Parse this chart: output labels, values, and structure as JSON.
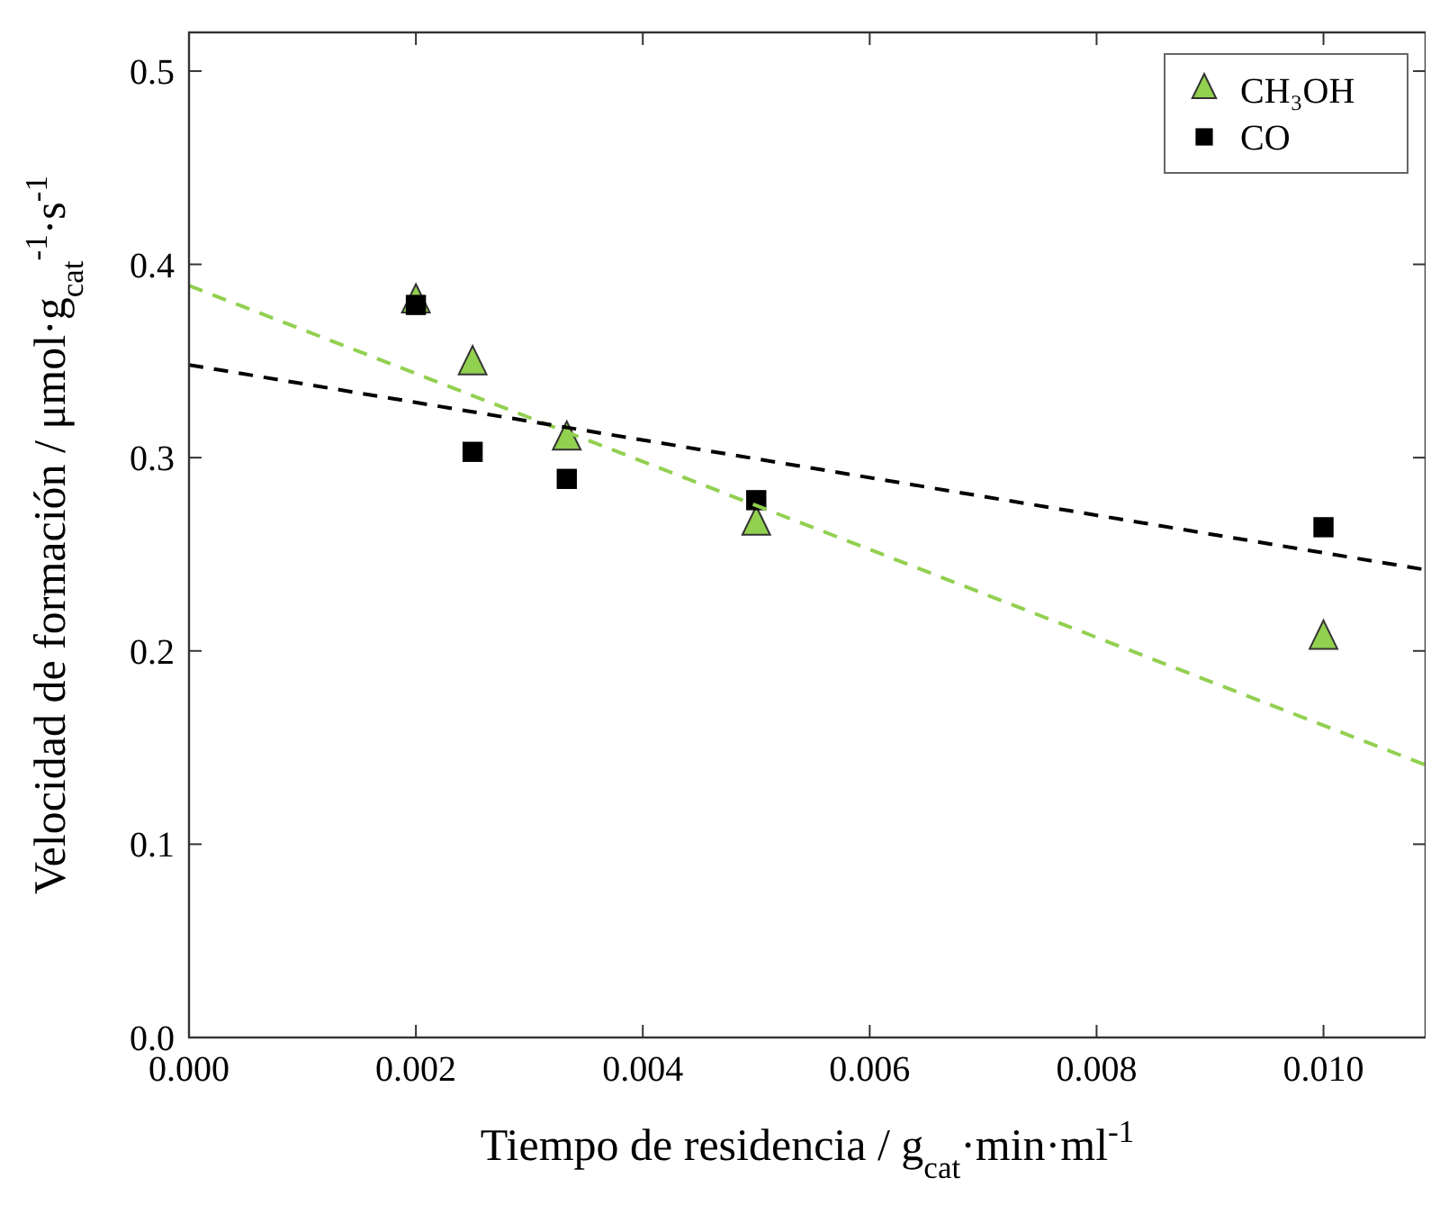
{
  "chart_data": {
    "type": "scatter",
    "xlabel": "Tiempo de residencia / g$_{cat}$·min·ml$^{-1}$",
    "ylabel": "Velocidad de formación / μmol·g$_{cat}$$^{-1}$·s$^{-1}$",
    "xlim": [
      0,
      0.0109
    ],
    "xticks": [
      {
        "value": 0,
        "label": "0.000"
      },
      {
        "value": 0.002,
        "label": "0.002"
      },
      {
        "value": 0.004,
        "label": "0.004"
      },
      {
        "value": 0.006,
        "label": "0.006"
      },
      {
        "value": 0.008,
        "label": "0.008"
      },
      {
        "value": 0.01,
        "label": "0.010"
      }
    ],
    "ylim": [
      0,
      0.52
    ],
    "yticks": [
      {
        "value": 0,
        "label": "0.0"
      },
      0.1,
      0.2,
      0.3,
      0.4,
      0.5
    ],
    "grid": false,
    "legend": "top right",
    "series": [
      {
        "name": "CH₃OH",
        "color": "#92d050",
        "marker": "triangle",
        "x": [
          0.002,
          0.0025,
          0.00333,
          0.005,
          0.01
        ],
        "values": [
          0.38,
          0.348,
          0.309,
          0.265,
          0.206
        ]
      },
      {
        "name": "CO",
        "color": "#000000",
        "marker": "square",
        "x": [
          0.002,
          0.0025,
          0.00333,
          0.005,
          0.01
        ],
        "values": [
          0.379,
          0.303,
          0.289,
          0.278,
          0.264
        ]
      },
      {
        "type": "line",
        "color": "#92d050",
        "line_style": "dashed",
        "marker": "none",
        "x": [
          0,
          0.0109
        ],
        "values": [
          0.389,
          0.141
        ]
      },
      {
        "type": "line",
        "color": "#000000",
        "line_style": "dashed",
        "marker": "none",
        "x": [
          0,
          0.0109
        ],
        "values": [
          0.348,
          0.242
        ]
      }
    ]
  }
}
